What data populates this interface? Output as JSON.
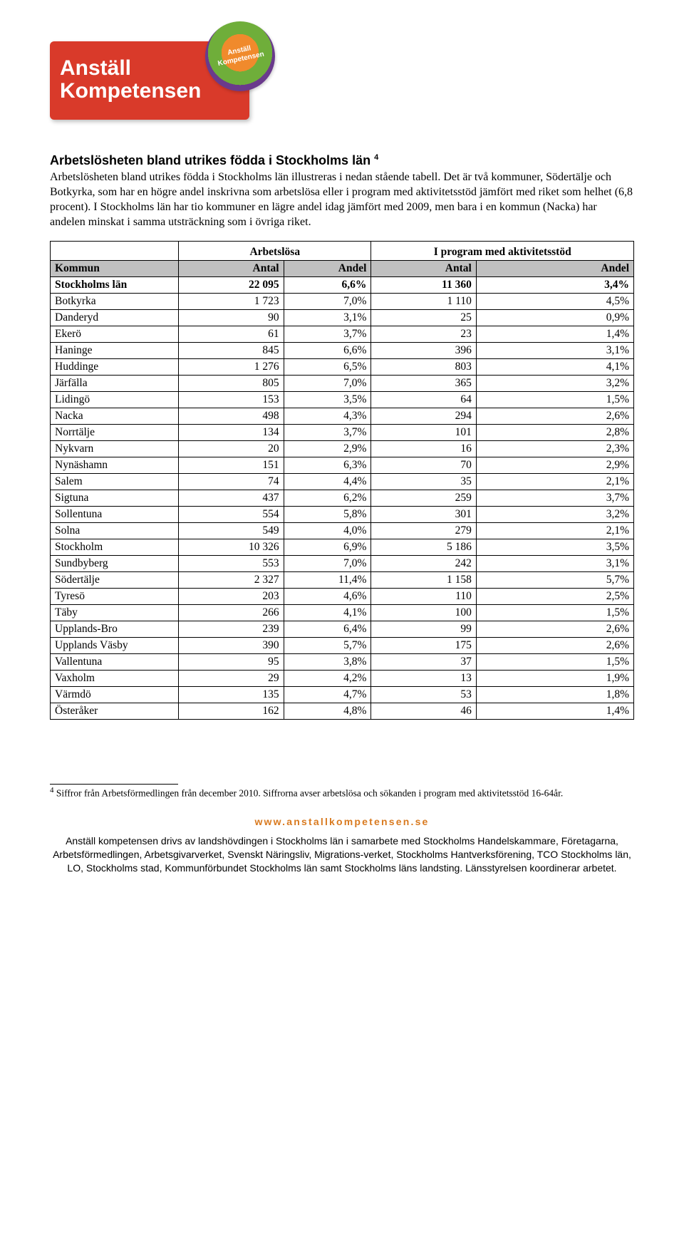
{
  "logo": {
    "line1": "Anställ",
    "line2": "Kompetensen",
    "badge_line1": "Anställ",
    "badge_line2": "Kompetensen"
  },
  "heading": "Arbetslösheten bland utrikes födda i Stockholms län",
  "heading_sup": "4",
  "paragraph": "Arbetslösheten bland utrikes födda i Stockholms län illustreras i nedan stående tabell. Det är två kommuner, Södertälje och Botkyrka, som har en högre andel inskrivna som arbetslösa eller i program med aktivitetsstöd jämfört med riket som helhet (6,8 procent). I Stockholms län har tio kommuner en lägre andel idag jämfört med 2009, men bara i en kommun (Nacka) har andelen minskat i samma utsträckning som i övriga riket.",
  "table": {
    "group1": "Arbetslösa",
    "group2": "I program med aktivitetsstöd",
    "cols": {
      "kommun": "Kommun",
      "antal": "Antal",
      "andel": "Andel"
    },
    "total": {
      "name": "Stockholms län",
      "a1": "22 095",
      "p1": "6,6%",
      "a2": "11 360",
      "p2": "3,4%"
    },
    "rows": [
      {
        "name": "Botkyrka",
        "a1": "1 723",
        "p1": "7,0%",
        "a2": "1 110",
        "p2": "4,5%"
      },
      {
        "name": "Danderyd",
        "a1": "90",
        "p1": "3,1%",
        "a2": "25",
        "p2": "0,9%"
      },
      {
        "name": "Ekerö",
        "a1": "61",
        "p1": "3,7%",
        "a2": "23",
        "p2": "1,4%"
      },
      {
        "name": "Haninge",
        "a1": "845",
        "p1": "6,6%",
        "a2": "396",
        "p2": "3,1%"
      },
      {
        "name": "Huddinge",
        "a1": "1 276",
        "p1": "6,5%",
        "a2": "803",
        "p2": "4,1%"
      },
      {
        "name": "Järfälla",
        "a1": "805",
        "p1": "7,0%",
        "a2": "365",
        "p2": "3,2%"
      },
      {
        "name": "Lidingö",
        "a1": "153",
        "p1": "3,5%",
        "a2": "64",
        "p2": "1,5%"
      },
      {
        "name": "Nacka",
        "a1": "498",
        "p1": "4,3%",
        "a2": "294",
        "p2": "2,6%"
      },
      {
        "name": "Norrtälje",
        "a1": "134",
        "p1": "3,7%",
        "a2": "101",
        "p2": "2,8%"
      },
      {
        "name": "Nykvarn",
        "a1": "20",
        "p1": "2,9%",
        "a2": "16",
        "p2": "2,3%"
      },
      {
        "name": "Nynäshamn",
        "a1": "151",
        "p1": "6,3%",
        "a2": "70",
        "p2": "2,9%"
      },
      {
        "name": "Salem",
        "a1": "74",
        "p1": "4,4%",
        "a2": "35",
        "p2": "2,1%"
      },
      {
        "name": "Sigtuna",
        "a1": "437",
        "p1": "6,2%",
        "a2": "259",
        "p2": "3,7%"
      },
      {
        "name": "Sollentuna",
        "a1": "554",
        "p1": "5,8%",
        "a2": "301",
        "p2": "3,2%"
      },
      {
        "name": "Solna",
        "a1": "549",
        "p1": "4,0%",
        "a2": "279",
        "p2": "2,1%"
      },
      {
        "name": "Stockholm",
        "a1": "10 326",
        "p1": "6,9%",
        "a2": "5 186",
        "p2": "3,5%"
      },
      {
        "name": "Sundbyberg",
        "a1": "553",
        "p1": "7,0%",
        "a2": "242",
        "p2": "3,1%"
      },
      {
        "name": "Södertälje",
        "a1": "2 327",
        "p1": "11,4%",
        "a2": "1 158",
        "p2": "5,7%"
      },
      {
        "name": "Tyresö",
        "a1": "203",
        "p1": "4,6%",
        "a2": "110",
        "p2": "2,5%"
      },
      {
        "name": "Täby",
        "a1": "266",
        "p1": "4,1%",
        "a2": "100",
        "p2": "1,5%"
      },
      {
        "name": "Upplands-Bro",
        "a1": "239",
        "p1": "6,4%",
        "a2": "99",
        "p2": "2,6%"
      },
      {
        "name": "Upplands Väsby",
        "a1": "390",
        "p1": "5,7%",
        "a2": "175",
        "p2": "2,6%"
      },
      {
        "name": "Vallentuna",
        "a1": "95",
        "p1": "3,8%",
        "a2": "37",
        "p2": "1,5%"
      },
      {
        "name": "Vaxholm",
        "a1": "29",
        "p1": "4,2%",
        "a2": "13",
        "p2": "1,9%"
      },
      {
        "name": "Värmdö",
        "a1": "135",
        "p1": "4,7%",
        "a2": "53",
        "p2": "1,8%"
      },
      {
        "name": "Österåker",
        "a1": "162",
        "p1": "4,8%",
        "a2": "46",
        "p2": "1,4%"
      }
    ]
  },
  "footnote_sup": "4",
  "footnote": " Siffror från Arbetsförmedlingen från december 2010. Siffrorna avser arbetslösa och sökanden i program med aktivitetsstöd 16-64år.",
  "footer": {
    "url": "www.anstallkompetensen.se",
    "text": "Anställ kompetensen drivs av landshövdingen i Stockholms län i samarbete med Stockholms Handelskammare, Företagarna, Arbetsförmedlingen, Arbetsgivarverket, Svenskt Näringsliv, Migrations-verket, Stockholms Hantverksförening, TCO Stockholms län, LO, Stockholms stad, Kommunförbundet Stockholms län samt Stockholms läns landsting. Länsstyrelsen koordinerar arbetet."
  }
}
